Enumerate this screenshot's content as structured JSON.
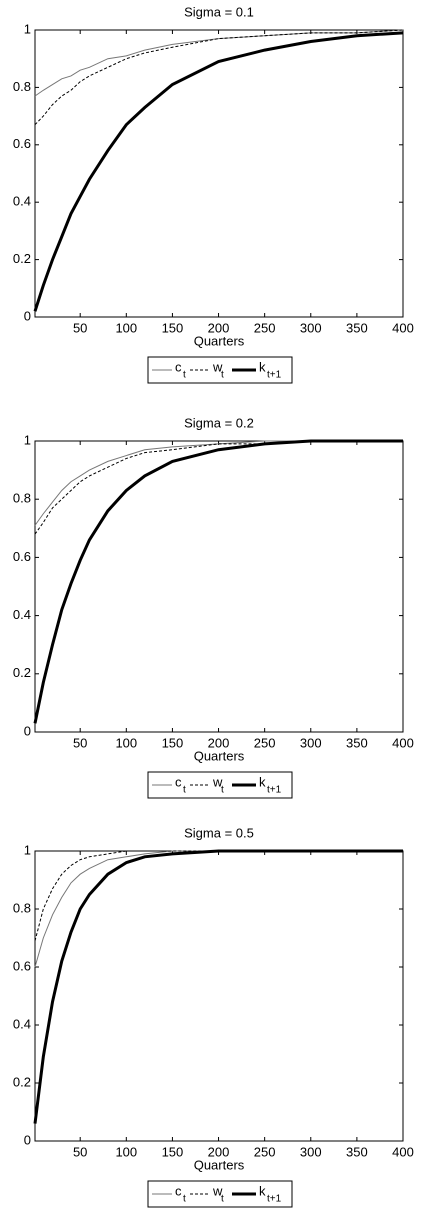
{
  "chart_data": [
    {
      "type": "line",
      "title": "Sigma = 0.1",
      "x_label": "Quarters",
      "x": [
        1,
        10,
        20,
        30,
        40,
        50,
        60,
        80,
        100,
        120,
        150,
        200,
        250,
        300,
        350,
        400
      ],
      "xlim": [
        1,
        400
      ],
      "xticks": [
        50,
        100,
        150,
        200,
        250,
        300,
        350,
        400
      ],
      "ylim": [
        0,
        1
      ],
      "yticks": [
        0,
        0.2,
        0.4,
        0.6,
        0.8,
        1
      ],
      "grid": false,
      "legend": "bottom",
      "series": [
        {
          "name": "c",
          "subscript": "t",
          "color": "#777777",
          "linestyle": "solid",
          "linewidth": 1,
          "values": [
            0.77,
            0.79,
            0.81,
            0.83,
            0.84,
            0.86,
            0.87,
            0.9,
            0.91,
            0.93,
            0.95,
            0.97,
            0.98,
            0.99,
            0.99,
            1
          ]
        },
        {
          "name": "w",
          "subscript": "t",
          "color": "#000000",
          "linestyle": "dashed",
          "linewidth": 1,
          "values": [
            0.67,
            0.7,
            0.74,
            0.77,
            0.79,
            0.82,
            0.84,
            0.87,
            0.9,
            0.92,
            0.94,
            0.97,
            0.98,
            0.99,
            0.99,
            1
          ]
        },
        {
          "name": "k",
          "subscript": "t+1",
          "color": "#000000",
          "linestyle": "solid",
          "linewidth": 3,
          "values": [
            0.02,
            0.11,
            0.2,
            0.28,
            0.36,
            0.42,
            0.48,
            0.58,
            0.67,
            0.73,
            0.81,
            0.89,
            0.93,
            0.96,
            0.98,
            0.99
          ]
        }
      ]
    },
    {
      "type": "line",
      "title": "Sigma = 0.2",
      "x_label": "Quarters",
      "x": [
        1,
        10,
        20,
        30,
        40,
        50,
        60,
        80,
        100,
        120,
        150,
        200,
        250,
        300,
        350,
        400
      ],
      "xlim": [
        1,
        400
      ],
      "xticks": [
        50,
        100,
        150,
        200,
        250,
        300,
        350,
        400
      ],
      "ylim": [
        0,
        1
      ],
      "yticks": [
        0,
        0.2,
        0.4,
        0.6,
        0.8,
        1
      ],
      "grid": false,
      "legend": "bottom",
      "series": [
        {
          "name": "c",
          "subscript": "t",
          "color": "#777777",
          "linestyle": "solid",
          "linewidth": 1,
          "values": [
            0.71,
            0.75,
            0.79,
            0.83,
            0.86,
            0.88,
            0.9,
            0.93,
            0.95,
            0.97,
            0.98,
            0.99,
            1,
            1,
            1,
            1
          ]
        },
        {
          "name": "w",
          "subscript": "t",
          "color": "#000000",
          "linestyle": "dashed",
          "linewidth": 1,
          "values": [
            0.68,
            0.72,
            0.77,
            0.8,
            0.83,
            0.86,
            0.88,
            0.91,
            0.94,
            0.96,
            0.97,
            0.99,
            0.99,
            1,
            1,
            1
          ]
        },
        {
          "name": "k",
          "subscript": "t+1",
          "color": "#000000",
          "linestyle": "solid",
          "linewidth": 3,
          "values": [
            0.03,
            0.17,
            0.3,
            0.42,
            0.51,
            0.59,
            0.66,
            0.76,
            0.83,
            0.88,
            0.93,
            0.97,
            0.99,
            1,
            1,
            1
          ]
        }
      ]
    },
    {
      "type": "line",
      "title": "Sigma = 0.5",
      "x_label": "Quarters",
      "x": [
        1,
        10,
        20,
        30,
        40,
        50,
        60,
        80,
        100,
        120,
        150,
        200,
        250,
        300,
        350,
        400
      ],
      "xlim": [
        1,
        400
      ],
      "xticks": [
        50,
        100,
        150,
        200,
        250,
        300,
        350,
        400
      ],
      "ylim": [
        0,
        1
      ],
      "yticks": [
        0,
        0.2,
        0.4,
        0.6,
        0.8,
        1
      ],
      "grid": false,
      "legend": "bottom",
      "series": [
        {
          "name": "c",
          "subscript": "t",
          "color": "#777777",
          "linestyle": "solid",
          "linewidth": 1,
          "values": [
            0.6,
            0.7,
            0.78,
            0.84,
            0.89,
            0.92,
            0.94,
            0.97,
            0.98,
            0.99,
            1,
            1,
            1,
            1,
            1,
            1
          ]
        },
        {
          "name": "w",
          "subscript": "t",
          "color": "#000000",
          "linestyle": "dashed",
          "linewidth": 1,
          "values": [
            0.69,
            0.8,
            0.87,
            0.92,
            0.95,
            0.97,
            0.98,
            0.99,
            1,
            1,
            1,
            1,
            1,
            1,
            1,
            1
          ]
        },
        {
          "name": "k",
          "subscript": "t+1",
          "color": "#000000",
          "linestyle": "solid",
          "linewidth": 3,
          "values": [
            0.06,
            0.29,
            0.48,
            0.62,
            0.72,
            0.8,
            0.85,
            0.92,
            0.96,
            0.98,
            0.99,
            1,
            1,
            1,
            1,
            1
          ]
        }
      ]
    }
  ]
}
